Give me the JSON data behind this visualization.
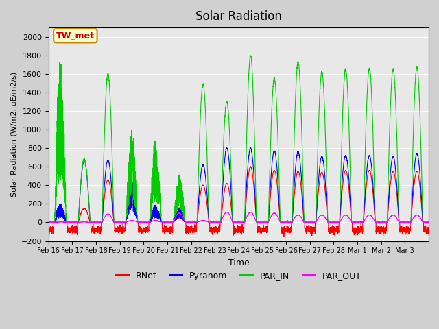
{
  "title": "Solar Radiation",
  "ylabel": "Solar Radiation (W/m2, uE/m2/s)",
  "xlabel": "Time",
  "ylim": [
    -200,
    2100
  ],
  "yticks": [
    -200,
    0,
    200,
    400,
    600,
    800,
    1000,
    1200,
    1400,
    1600,
    1800,
    2000
  ],
  "date_labels": [
    "Feb 16",
    "Feb 17",
    "Feb 18",
    "Feb 19",
    "Feb 20",
    "Feb 21",
    "Feb 22",
    "Feb 23",
    "Feb 24",
    "Feb 25",
    "Feb 26",
    "Feb 27",
    "Feb 28",
    "Mar 1",
    "Mar 2",
    "Mar 3"
  ],
  "colors": {
    "RNet": "#ff0000",
    "Pyranom": "#0000ff",
    "PAR_IN": "#00cc00",
    "PAR_OUT": "#ff00ff"
  },
  "annotation_text": "TW_met",
  "annotation_bg": "#ffffcc",
  "annotation_border": "#cc8800",
  "n_days": 16,
  "points_per_day": 288,
  "par_in_peaks": [
    1520,
    680,
    1600,
    830,
    750,
    450,
    1490,
    1300,
    1800,
    1550,
    1730,
    1620,
    1650,
    1660,
    1650,
    1670
  ],
  "pyranom_peaks": [
    220,
    670,
    670,
    500,
    200,
    170,
    620,
    800,
    800,
    770,
    760,
    710,
    720,
    720,
    710,
    740
  ],
  "rnet_peaks": [
    100,
    150,
    460,
    200,
    110,
    50,
    400,
    420,
    600,
    560,
    550,
    540,
    560,
    560,
    550,
    550
  ],
  "par_out_peaks": [
    5,
    5,
    90,
    20,
    20,
    100,
    20,
    110,
    110,
    100,
    80,
    80,
    80,
    80,
    80,
    80
  ],
  "cloudy_days": [
    0,
    3,
    4,
    5
  ]
}
